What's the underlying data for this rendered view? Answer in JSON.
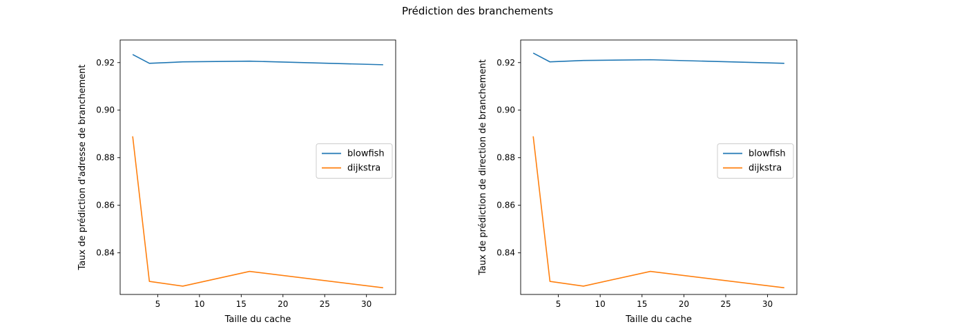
{
  "suptitle": "Prédiction des branchements",
  "colors": {
    "blowfish": "#1f77b4",
    "dijkstra": "#ff7f0e"
  },
  "chart_data": [
    {
      "type": "line",
      "title": "",
      "xlabel": "Taille du cache",
      "ylabel": "Taux de prédiction d'adresse de branchement",
      "xlim": [
        0.5,
        33.5
      ],
      "ylim": [
        0.8225,
        0.9295
      ],
      "xticks": [
        5,
        10,
        15,
        20,
        25,
        30
      ],
      "yticks": [
        0.84,
        0.86,
        0.88,
        0.9,
        0.92
      ],
      "ytick_labels": [
        "0.84",
        "0.86",
        "0.88",
        "0.90",
        "0.92"
      ],
      "grid": false,
      "legend": "center-right",
      "x": [
        2,
        4,
        8,
        16,
        32
      ],
      "series": [
        {
          "name": "blowfish",
          "values": [
            0.9234,
            0.9197,
            0.9203,
            0.9206,
            0.9191
          ]
        },
        {
          "name": "dijkstra",
          "values": [
            0.889,
            0.828,
            0.826,
            0.8322,
            0.8253
          ]
        }
      ]
    },
    {
      "type": "line",
      "title": "",
      "xlabel": "Taille du cache",
      "ylabel": "Taux de prédiction de direction de branchement",
      "xlim": [
        0.5,
        33.5
      ],
      "ylim": [
        0.8225,
        0.9295
      ],
      "xticks": [
        5,
        10,
        15,
        20,
        25,
        30
      ],
      "yticks": [
        0.84,
        0.86,
        0.88,
        0.9,
        0.92
      ],
      "ytick_labels": [
        "0.84",
        "0.86",
        "0.88",
        "0.90",
        "0.92"
      ],
      "grid": false,
      "legend": "center-right",
      "x": [
        2,
        4,
        8,
        16,
        32
      ],
      "series": [
        {
          "name": "blowfish",
          "values": [
            0.924,
            0.9203,
            0.9209,
            0.9212,
            0.9197
          ]
        },
        {
          "name": "dijkstra",
          "values": [
            0.889,
            0.828,
            0.826,
            0.8322,
            0.8253
          ]
        }
      ]
    }
  ]
}
